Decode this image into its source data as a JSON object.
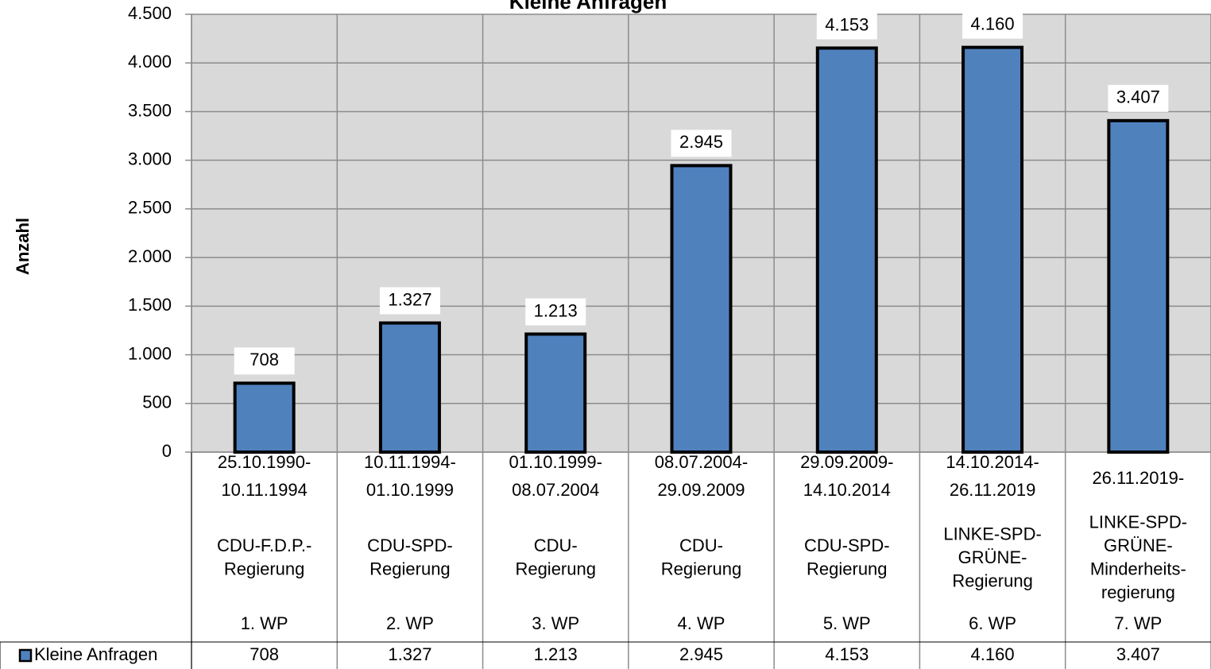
{
  "chart_data": {
    "type": "bar",
    "title": "Kleine Anfragen",
    "y_label": "Anzahl",
    "categories": [
      "1. WP",
      "2. WP",
      "3. WP",
      "4. WP",
      "5. WP",
      "6. WP",
      "7. WP"
    ],
    "periods": [
      [
        "25.10.1990-",
        "10.11.1994"
      ],
      [
        "10.11.1994-",
        "01.10.1999"
      ],
      [
        "01.10.1999-",
        "08.07.2004"
      ],
      [
        "08.07.2004-",
        "29.09.2009"
      ],
      [
        "29.09.2009-",
        "14.10.2014"
      ],
      [
        "14.10.2014-",
        "26.11.2019"
      ],
      [
        "26.11.2019-"
      ]
    ],
    "governments": [
      [
        "CDU-F.D.P.-",
        "Regierung"
      ],
      [
        "CDU-SPD-",
        "Regierung"
      ],
      [
        "CDU-",
        "Regierung"
      ],
      [
        "CDU-",
        "Regierung"
      ],
      [
        "CDU-SPD-",
        "Regierung"
      ],
      [
        "LINKE-SPD-",
        "GRÜNE-",
        "Regierung"
      ],
      [
        "LINKE-SPD-",
        "GRÜNE-",
        "Minderheits-",
        "regierung"
      ]
    ],
    "series": [
      {
        "name": "Kleine Anfragen",
        "color": "#4f81bd",
        "values": [
          708,
          1327,
          1213,
          2945,
          4153,
          4160,
          3407
        ],
        "value_labels": [
          "708",
          "1.327",
          "1.213",
          "2.945",
          "4.153",
          "4.160",
          "3.407"
        ]
      }
    ],
    "ylim": [
      0,
      4500
    ],
    "yticks": [
      0,
      500,
      {
        "value": 1000,
        "label": "1.000"
      },
      {
        "value": 1500,
        "label": "1.500"
      },
      {
        "value": 2000,
        "label": "2.000"
      },
      {
        "value": 2500,
        "label": "2.500"
      },
      {
        "value": 3000,
        "label": "3.000"
      },
      {
        "value": 3500,
        "label": "3.500"
      },
      {
        "value": 4000,
        "label": "4.000"
      },
      {
        "value": 4500,
        "label": "4.500"
      }
    ],
    "grid": true
  }
}
